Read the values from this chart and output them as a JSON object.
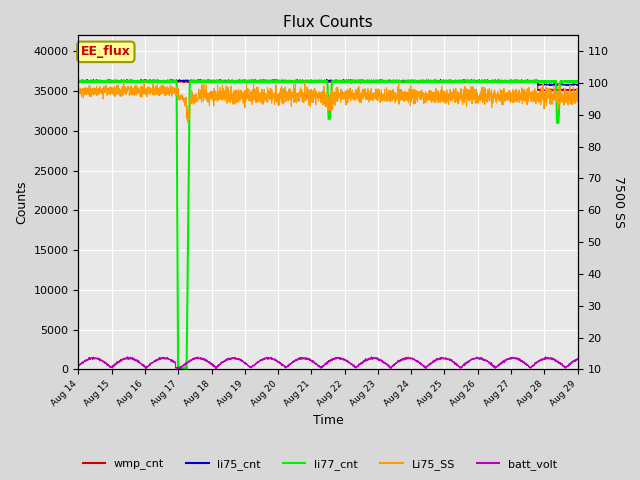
{
  "title": "Flux Counts",
  "xlabel": "Time",
  "ylabel_left": "Counts",
  "ylabel_right": "7500 SS",
  "ylim_left": [
    0,
    42000
  ],
  "ylim_right": [
    10,
    115
  ],
  "fig_bg_color": "#d8d8d8",
  "plot_bg_color": "#e8e8e8",
  "x_ticks": [
    0,
    1,
    2,
    3,
    4,
    5,
    6,
    7,
    8,
    9,
    10,
    11,
    12,
    13,
    14,
    15
  ],
  "x_tick_labels": [
    "Aug 14",
    "Aug 15",
    "Aug 16",
    "Aug 17",
    "Aug 18",
    "Aug 19",
    "Aug 20",
    "Aug 21",
    "Aug 22",
    "Aug 23",
    "Aug 24",
    "Aug 25",
    "Aug 26",
    "Aug 27",
    "Aug 28",
    "Aug 29"
  ],
  "yticks_left": [
    0,
    5000,
    10000,
    15000,
    20000,
    25000,
    30000,
    35000,
    40000
  ],
  "yticks_right": [
    10,
    20,
    30,
    40,
    50,
    60,
    70,
    80,
    90,
    100,
    110
  ],
  "legend_labels": [
    "wmp_cnt",
    "li75_cnt",
    "li77_cnt",
    "Li75_SS",
    "batt_volt"
  ],
  "legend_colors": [
    "#cc0000",
    "#0000cc",
    "#00ee00",
    "#ff9900",
    "#bb00bb"
  ],
  "annotation_text": "EE_flux",
  "annotation_bg": "#ffff99",
  "annotation_border": "#999900",
  "wmp_level": 36200,
  "li75_level": 36300,
  "li77_level": 36200,
  "li75_ss_nominal": 97.5,
  "batt_period": 1.05,
  "batt_base": 200,
  "batt_amp": 1200
}
